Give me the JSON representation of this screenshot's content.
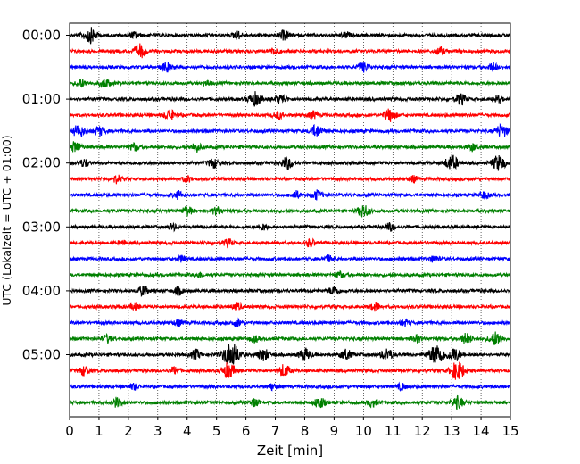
{
  "chart_data": {
    "type": "line",
    "title": "",
    "xlabel": "Zeit  [min]",
    "ylabel": "UTC (Lokalzeit = UTC + 01:00)",
    "xlim": [
      0,
      15
    ],
    "x_ticks": [
      "0",
      "1",
      "2",
      "3",
      "4",
      "5",
      "6",
      "7",
      "8",
      "9",
      "10",
      "11",
      "12",
      "13",
      "14",
      "15"
    ],
    "y_ticks": [
      "00:00",
      "01:00",
      "02:00",
      "03:00",
      "04:00",
      "05:00"
    ],
    "grid": "vertical dotted lines at each minute",
    "row_interval_min": 15,
    "trace_colors": [
      "#000000",
      "#ff0000",
      "#0000ff",
      "#008000"
    ],
    "traces": [
      {
        "start": "00:00",
        "color": "#000000",
        "events": [
          [
            0.7,
            1.0
          ],
          [
            2.2,
            0.4
          ],
          [
            5.7,
            0.5
          ],
          [
            7.3,
            0.6
          ],
          [
            9.4,
            0.4
          ]
        ]
      },
      {
        "start": "00:15",
        "color": "#ff0000",
        "events": [
          [
            2.4,
            0.9
          ],
          [
            7.0,
            0.5
          ],
          [
            12.6,
            0.5
          ]
        ]
      },
      {
        "start": "00:30",
        "color": "#0000ff",
        "events": [
          [
            3.3,
            0.6
          ],
          [
            10.0,
            0.6
          ],
          [
            14.4,
            0.5
          ]
        ]
      },
      {
        "start": "00:45",
        "color": "#008000",
        "events": [
          [
            0.4,
            0.5
          ],
          [
            1.2,
            0.6
          ],
          [
            4.7,
            0.3
          ]
        ]
      },
      {
        "start": "01:00",
        "color": "#000000",
        "events": [
          [
            6.3,
            0.9
          ],
          [
            7.2,
            0.6
          ],
          [
            13.3,
            0.7
          ],
          [
            14.6,
            0.4
          ]
        ]
      },
      {
        "start": "01:15",
        "color": "#ff0000",
        "events": [
          [
            3.4,
            0.7
          ],
          [
            7.1,
            0.5
          ],
          [
            8.3,
            0.5
          ],
          [
            10.9,
            0.8
          ]
        ]
      },
      {
        "start": "01:30",
        "color": "#0000ff",
        "events": [
          [
            0.3,
            0.8
          ],
          [
            1.0,
            0.6
          ],
          [
            8.4,
            0.8
          ],
          [
            14.7,
            0.8
          ]
        ]
      },
      {
        "start": "01:45",
        "color": "#008000",
        "events": [
          [
            0.2,
            0.7
          ],
          [
            2.2,
            0.5
          ],
          [
            4.3,
            0.6
          ],
          [
            13.7,
            0.5
          ]
        ]
      },
      {
        "start": "02:00",
        "color": "#000000",
        "events": [
          [
            0.5,
            0.5
          ],
          [
            4.9,
            0.6
          ],
          [
            7.4,
            0.8
          ],
          [
            13.0,
            1.0
          ],
          [
            14.6,
            1.0
          ]
        ]
      },
      {
        "start": "02:15",
        "color": "#ff0000",
        "events": [
          [
            1.6,
            0.5
          ],
          [
            4.0,
            0.4
          ],
          [
            11.7,
            0.4
          ]
        ]
      },
      {
        "start": "02:30",
        "color": "#0000ff",
        "events": [
          [
            3.7,
            0.5
          ],
          [
            7.7,
            0.5
          ],
          [
            8.4,
            0.6
          ],
          [
            14.1,
            0.5
          ]
        ]
      },
      {
        "start": "02:45",
        "color": "#008000",
        "events": [
          [
            4.0,
            0.6
          ],
          [
            5.0,
            0.5
          ],
          [
            10.0,
            0.8
          ]
        ]
      },
      {
        "start": "03:00",
        "color": "#000000",
        "events": [
          [
            3.5,
            0.4
          ],
          [
            6.6,
            0.4
          ],
          [
            10.9,
            0.5
          ]
        ]
      },
      {
        "start": "03:15",
        "color": "#ff0000",
        "events": [
          [
            1.8,
            0.3
          ],
          [
            5.4,
            0.5
          ],
          [
            8.2,
            0.5
          ]
        ]
      },
      {
        "start": "03:30",
        "color": "#0000ff",
        "events": [
          [
            3.8,
            0.4
          ],
          [
            8.8,
            0.4
          ],
          [
            12.4,
            0.4
          ]
        ]
      },
      {
        "start": "03:45",
        "color": "#008000",
        "events": [
          [
            4.4,
            0.3
          ],
          [
            9.2,
            0.4
          ]
        ]
      },
      {
        "start": "04:00",
        "color": "#000000",
        "events": [
          [
            2.5,
            0.6
          ],
          [
            3.7,
            0.5
          ],
          [
            9.0,
            0.6
          ]
        ]
      },
      {
        "start": "04:15",
        "color": "#ff0000",
        "events": [
          [
            2.2,
            0.4
          ],
          [
            5.7,
            0.4
          ],
          [
            10.4,
            0.5
          ]
        ]
      },
      {
        "start": "04:30",
        "color": "#0000ff",
        "events": [
          [
            3.7,
            0.4
          ],
          [
            5.7,
            0.5
          ],
          [
            11.4,
            0.4
          ]
        ]
      },
      {
        "start": "04:45",
        "color": "#008000",
        "events": [
          [
            1.3,
            0.5
          ],
          [
            6.3,
            0.4
          ],
          [
            11.8,
            0.5
          ],
          [
            13.5,
            0.7
          ],
          [
            14.5,
            0.9
          ]
        ]
      },
      {
        "start": "05:00",
        "color": "#000000",
        "events": [
          [
            4.3,
            0.6
          ],
          [
            5.5,
            1.6
          ],
          [
            6.6,
            0.8
          ],
          [
            8.0,
            0.8
          ],
          [
            9.4,
            0.7
          ],
          [
            10.8,
            0.8
          ],
          [
            12.5,
            1.4
          ],
          [
            13.1,
            0.9
          ]
        ]
      },
      {
        "start": "05:15",
        "color": "#ff0000",
        "events": [
          [
            0.5,
            0.6
          ],
          [
            3.6,
            0.5
          ],
          [
            5.4,
            1.0
          ],
          [
            7.3,
            0.8
          ],
          [
            13.2,
            1.2
          ]
        ]
      },
      {
        "start": "05:30",
        "color": "#0000ff",
        "events": [
          [
            2.2,
            0.4
          ],
          [
            6.9,
            0.4
          ],
          [
            11.3,
            0.4
          ]
        ]
      },
      {
        "start": "05:45",
        "color": "#008000",
        "events": [
          [
            1.6,
            0.6
          ],
          [
            6.3,
            0.5
          ],
          [
            8.5,
            0.7
          ],
          [
            10.3,
            0.5
          ],
          [
            13.2,
            0.8
          ]
        ]
      }
    ]
  }
}
